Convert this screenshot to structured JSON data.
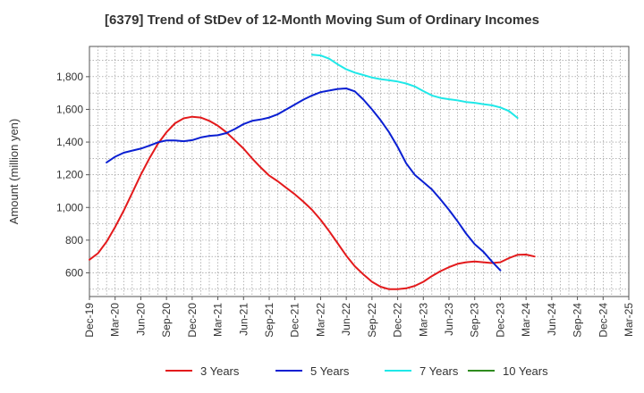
{
  "chart_data": {
    "type": "line",
    "title": "[6379]  Trend of StDev of 12-Month Moving Sum of Ordinary Incomes",
    "xlabel": "",
    "ylabel": "Amount (million yen)",
    "ylim": [
      455,
      1985
    ],
    "yticks": [
      600,
      800,
      1000,
      1200,
      1400,
      1600,
      1800
    ],
    "ytick_labels": [
      "600",
      "800",
      "1,000",
      "1,200",
      "1,400",
      "1,600",
      "1,800"
    ],
    "x_ticks": [
      "Dec-19",
      "Mar-20",
      "Jun-20",
      "Sep-20",
      "Dec-20",
      "Mar-21",
      "Jun-21",
      "Sep-21",
      "Dec-21",
      "Mar-22",
      "Jun-22",
      "Sep-22",
      "Dec-22",
      "Mar-23",
      "Jun-23",
      "Sep-23",
      "Dec-23",
      "Mar-24",
      "Jun-24",
      "Sep-24",
      "Dec-24",
      "Mar-25"
    ],
    "x_index_range": [
      0,
      63
    ],
    "grid": true,
    "legend_position": "bottom",
    "series": [
      {
        "name": "3 Years",
        "color": "#e31a1c",
        "start_index": 0,
        "values": [
          680,
          720,
          790,
          880,
          980,
          1090,
          1200,
          1300,
          1390,
          1460,
          1515,
          1545,
          1555,
          1550,
          1530,
          1500,
          1460,
          1410,
          1360,
          1300,
          1245,
          1195,
          1160,
          1120,
          1080,
          1035,
          985,
          925,
          855,
          780,
          705,
          640,
          590,
          545,
          515,
          500,
          500,
          505,
          520,
          545,
          580,
          610,
          635,
          655,
          665,
          670,
          665,
          660,
          665,
          690,
          710,
          712,
          700
        ]
      },
      {
        "name": "5 Years",
        "color": "#0a1fd2",
        "start_index": 2,
        "values": [
          1275,
          1310,
          1335,
          1348,
          1360,
          1378,
          1398,
          1410,
          1410,
          1405,
          1412,
          1428,
          1438,
          1442,
          1455,
          1480,
          1510,
          1530,
          1538,
          1550,
          1570,
          1600,
          1630,
          1660,
          1685,
          1705,
          1715,
          1725,
          1728,
          1710,
          1660,
          1600,
          1535,
          1460,
          1370,
          1270,
          1200,
          1155,
          1110,
          1050,
          985,
          915,
          840,
          775,
          730,
          670,
          615
        ]
      },
      {
        "name": "7 Years",
        "color": "#1fe8e8",
        "start_index": 26,
        "values": [
          1935,
          1930,
          1910,
          1875,
          1845,
          1825,
          1810,
          1795,
          1785,
          1778,
          1770,
          1758,
          1740,
          1712,
          1685,
          1670,
          1662,
          1655,
          1645,
          1640,
          1632,
          1625,
          1612,
          1590,
          1548
        ]
      },
      {
        "name": "10 Years",
        "color": "#2e8b1e",
        "start_index": 0,
        "values": []
      }
    ]
  }
}
